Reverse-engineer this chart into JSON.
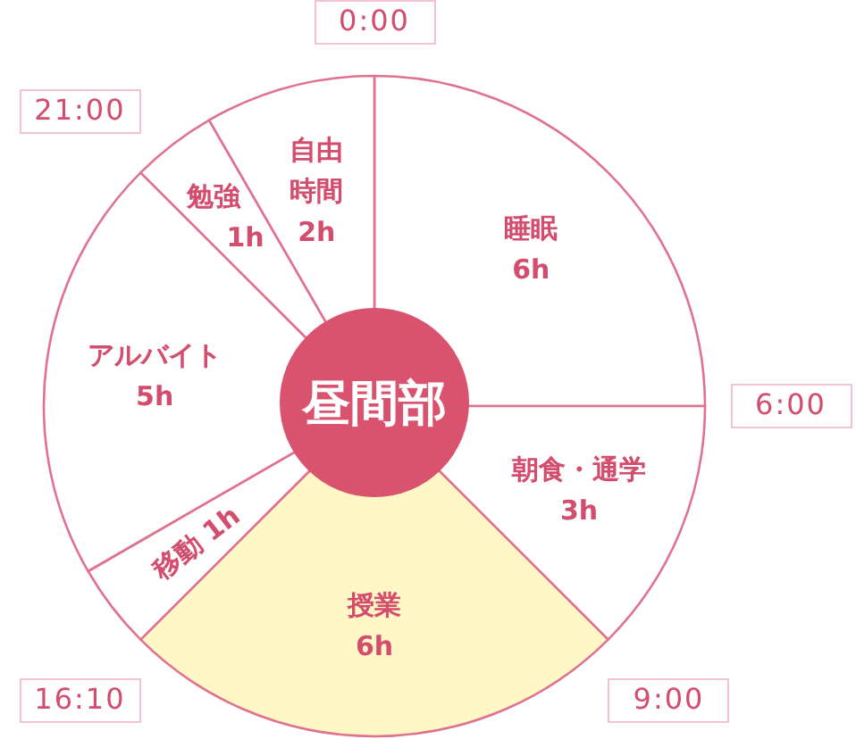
{
  "chart_data": {
    "type": "donut",
    "title": "昼間部",
    "categories": [
      "睡眠",
      "朝食・通学",
      "授業",
      "移動",
      "アルバイト",
      "勉強",
      "自由時間"
    ],
    "values": [
      6,
      3,
      6,
      1,
      5,
      1,
      2
    ],
    "value_labels": [
      "6h",
      "3h",
      "6h",
      "1h",
      "5h",
      "1h",
      "2h"
    ],
    "colors": [
      "#ffffff",
      "#ffffff",
      "#fff7c6",
      "#ffffff",
      "#ffffff",
      "#ffffff",
      "#ffffff"
    ],
    "annotations": [
      "0:00",
      "6:00",
      "9:00",
      "16:10",
      "21:00"
    ]
  }
}
